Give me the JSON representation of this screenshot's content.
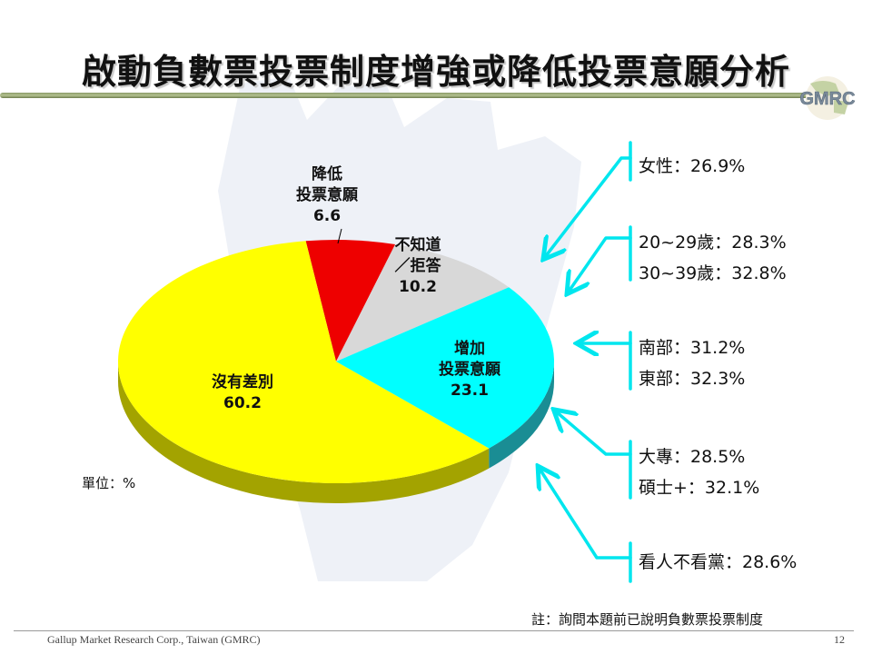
{
  "title": "啟動負數票投票制度增強或降低投票意願分析",
  "logo_text": "GMRC",
  "unit_label": "單位：%",
  "note": "註：詢問本題前已說明負數票投票制度",
  "footer": "Gallup Market Research Corp., Taiwan (GMRC)",
  "page_number": "12",
  "chart_data": {
    "type": "pie",
    "title": "",
    "unit": "%",
    "slices": [
      {
        "label_lines": [
          "降低",
          "投票意願"
        ],
        "value": 6.6,
        "value_text": "6.6",
        "color": "#ee0000",
        "side_color": "#9c0000"
      },
      {
        "label_lines": [
          "不知道",
          "／拒答"
        ],
        "value": 10.2,
        "value_text": "10.2",
        "color": "#d8d8d8",
        "side_color": "#8c8c8c"
      },
      {
        "label_lines": [
          "增加",
          "投票意願"
        ],
        "value": 23.1,
        "value_text": "23.1",
        "color": "#00ffff",
        "side_color": "#1a8d94"
      },
      {
        "label_lines": [
          "沒有差別"
        ],
        "value": 60.2,
        "value_text": "60.2",
        "color": "#ffff00",
        "side_color": "#a3a300"
      }
    ]
  },
  "demographics": {
    "gender": [
      "女性：26.9%"
    ],
    "age": [
      "20~29歲：28.3%",
      "30~39歲：32.8%"
    ],
    "region": [
      "南部：31.2%",
      "東部：32.3%"
    ],
    "education": [
      "大專：28.5%",
      "碩士+：32.1%"
    ],
    "voting": [
      "看人不看黨：28.6%"
    ]
  },
  "colors": {
    "arrow": "#00e6ee",
    "title_rule": "#8a9a68"
  }
}
